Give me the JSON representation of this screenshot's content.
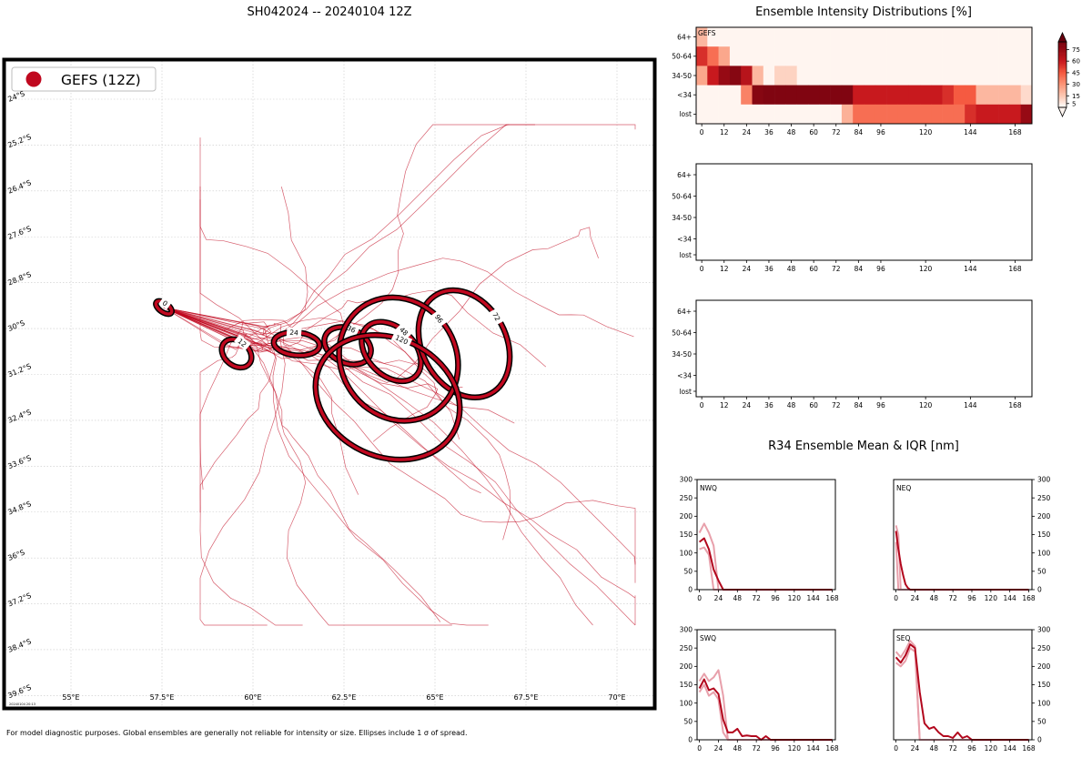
{
  "header": {
    "title": "SH042024 -- 20240104 12Z",
    "footer": "For model diagnostic purposes. Global ensembles are generally not reliable for intensity or size. Ellipses include 1 σ of spread.",
    "stamp": "20240104 20:13"
  },
  "colors": {
    "track": "#c0081f",
    "ellipse_fill": "#c0081f",
    "ellipse_edge": "#000000",
    "r34_mean": "#b2061c",
    "r34_iqr": "#e8a0ab"
  },
  "chart_data": [
    {
      "type": "map",
      "legend": {
        "label": "GEFS (12Z)",
        "placement": "top-left"
      },
      "lon_ticks": [
        "55°E",
        "57.5°E",
        "60°E",
        "62.5°E",
        "65°E",
        "67.5°E",
        "70°E"
      ],
      "lon_values": [
        55,
        57.5,
        60,
        62.5,
        65,
        67.5,
        70
      ],
      "lat_ticks": [
        "24°S",
        "25.2°S",
        "26.4°S",
        "27.6°S",
        "28.8°S",
        "30°S",
        "31.2°S",
        "32.4°S",
        "33.6°S",
        "34.8°S",
        "36°S",
        "37.2°S",
        "38.4°S",
        "39.6°S"
      ],
      "lat_values": [
        -24,
        -25.2,
        -26.4,
        -27.6,
        -28.8,
        -30,
        -31.2,
        -32.4,
        -33.6,
        -34.8,
        -36,
        -37.2,
        -38.4,
        -39.6
      ],
      "xlim": [
        53.2,
        71
      ],
      "ylim": [
        -39.9,
        -23.0
      ],
      "grid": true,
      "ellipses": [
        {
          "label": "0",
          "lon": 57.55,
          "lat": -29.45,
          "rx_deg": 0.25,
          "ry_deg": 0.12,
          "angle": 35
        },
        {
          "label": "12",
          "lon": 59.55,
          "lat": -30.65,
          "rx_deg": 0.45,
          "ry_deg": 0.32,
          "angle": 40
        },
        {
          "label": "24",
          "lon": 61.2,
          "lat": -30.4,
          "rx_deg": 0.63,
          "ry_deg": 0.3,
          "angle": 5
        },
        {
          "label": "36",
          "lon": 62.6,
          "lat": -30.45,
          "rx_deg": 0.67,
          "ry_deg": 0.45,
          "angle": 25
        },
        {
          "label": "48",
          "lon": 63.8,
          "lat": -30.6,
          "rx_deg": 0.95,
          "ry_deg": 0.62,
          "angle": 45
        },
        {
          "label": "72",
          "lon": 65.8,
          "lat": -30.4,
          "rx_deg": 1.55,
          "ry_deg": 1.1,
          "angle": 62
        },
        {
          "label": "96",
          "lon": 64.0,
          "lat": -30.8,
          "rx_deg": 1.75,
          "ry_deg": 1.5,
          "angle": 55
        },
        {
          "label": "120",
          "lon": 63.7,
          "lat": -31.8,
          "rx_deg": 2.05,
          "ry_deg": 1.55,
          "angle": 25
        }
      ],
      "tracks_start": {
        "lon": 57.55,
        "lat": -29.45
      },
      "track_count": 30
    },
    {
      "type": "heatmap",
      "title": "Ensemble Intensity Distributions [%]",
      "panels": [
        {
          "label": "GEFS",
          "has_data": true
        },
        {
          "label": "",
          "has_data": false
        },
        {
          "label": "",
          "has_data": false
        }
      ],
      "rows": [
        "64+",
        "50-64",
        "34-50",
        "<34",
        "lost"
      ],
      "x_ticks": [
        0,
        12,
        24,
        36,
        48,
        60,
        72,
        84,
        96,
        120,
        144,
        168
      ],
      "x_columns": [
        0,
        6,
        12,
        18,
        24,
        30,
        36,
        42,
        48,
        54,
        60,
        66,
        72,
        78,
        84,
        90,
        96,
        102,
        108,
        114,
        120,
        126,
        132,
        138,
        144,
        150,
        156,
        162,
        168,
        174
      ],
      "values": [
        [
          20,
          0,
          0,
          0,
          0,
          0,
          0,
          0,
          0,
          0,
          0,
          0,
          0,
          0,
          0,
          0,
          0,
          0,
          0,
          0,
          0,
          0,
          0,
          0,
          0,
          0,
          0,
          0,
          0,
          0
        ],
        [
          55,
          40,
          25,
          0,
          0,
          0,
          0,
          0,
          0,
          0,
          0,
          0,
          0,
          0,
          0,
          0,
          0,
          0,
          0,
          0,
          0,
          0,
          0,
          0,
          0,
          0,
          0,
          0,
          0,
          0
        ],
        [
          25,
          60,
          75,
          80,
          65,
          20,
          0,
          12,
          12,
          0,
          0,
          0,
          0,
          0,
          0,
          0,
          0,
          0,
          0,
          0,
          0,
          0,
          0,
          0,
          0,
          0,
          0,
          0,
          0,
          0
        ],
        [
          0,
          0,
          0,
          0,
          35,
          80,
          82,
          82,
          82,
          82,
          82,
          82,
          82,
          82,
          60,
          60,
          60,
          60,
          60,
          60,
          60,
          60,
          55,
          45,
          45,
          20,
          20,
          20,
          20,
          10
        ],
        [
          0,
          0,
          0,
          0,
          0,
          0,
          0,
          0,
          0,
          0,
          0,
          0,
          0,
          22,
          40,
          40,
          40,
          40,
          40,
          40,
          40,
          40,
          40,
          40,
          55,
          60,
          60,
          60,
          60,
          75
        ]
      ],
      "colorbar": {
        "ticks": [
          5,
          15,
          30,
          45,
          60,
          75
        ],
        "range": [
          0,
          85
        ],
        "extend": "both"
      }
    },
    {
      "type": "line",
      "title": "R34 Ensemble Mean & IQR [nm]",
      "x_ticks": [
        0,
        24,
        48,
        72,
        96,
        120,
        144,
        168
      ],
      "ylim": [
        0,
        300
      ],
      "y_ticks": [
        0,
        50,
        100,
        150,
        200,
        250,
        300
      ],
      "panels": [
        {
          "label": "NWQ",
          "x": [
            0,
            6,
            12,
            18,
            24,
            30,
            36,
            168
          ],
          "mean": [
            130,
            140,
            110,
            55,
            25,
            0,
            0,
            0
          ],
          "iqr_upper": [
            155,
            180,
            155,
            120,
            0,
            0,
            0,
            0
          ],
          "iqr_lower": [
            110,
            115,
            95,
            0,
            0,
            0,
            0,
            0
          ]
        },
        {
          "label": "NEQ",
          "x": [
            0,
            3,
            6,
            9,
            12,
            15,
            18,
            168
          ],
          "mean": [
            160,
            110,
            70,
            40,
            15,
            5,
            0,
            0
          ],
          "iqr_upper": [
            175,
            150,
            0,
            0,
            0,
            0,
            0,
            0
          ],
          "iqr_lower": [
            130,
            0,
            0,
            0,
            0,
            0,
            0,
            0
          ]
        },
        {
          "label": "SWQ",
          "x": [
            0,
            6,
            12,
            18,
            24,
            30,
            36,
            42,
            48,
            54,
            60,
            66,
            72,
            78,
            84,
            90,
            96,
            168
          ],
          "mean": [
            140,
            165,
            135,
            140,
            125,
            55,
            20,
            20,
            30,
            10,
            12,
            10,
            10,
            0,
            10,
            0,
            0,
            0
          ],
          "iqr_upper": [
            160,
            180,
            160,
            170,
            190,
            120,
            0,
            0,
            0,
            0,
            0,
            0,
            0,
            0,
            0,
            0,
            0,
            0
          ],
          "iqr_lower": [
            130,
            150,
            120,
            130,
            110,
            20,
            0,
            0,
            0,
            0,
            0,
            0,
            0,
            0,
            0,
            0,
            0,
            0
          ]
        },
        {
          "label": "SEQ",
          "x": [
            0,
            6,
            12,
            18,
            24,
            30,
            36,
            42,
            48,
            54,
            60,
            66,
            72,
            78,
            84,
            90,
            96,
            168
          ],
          "mean": [
            225,
            210,
            230,
            260,
            250,
            130,
            45,
            30,
            35,
            20,
            10,
            10,
            5,
            20,
            5,
            10,
            0,
            0
          ],
          "iqr_upper": [
            240,
            225,
            245,
            270,
            255,
            0,
            0,
            0,
            0,
            0,
            0,
            0,
            0,
            0,
            0,
            0,
            0,
            0
          ],
          "iqr_lower": [
            210,
            200,
            215,
            250,
            240,
            0,
            0,
            0,
            0,
            0,
            0,
            0,
            0,
            0,
            0,
            0,
            0,
            0
          ]
        }
      ]
    }
  ]
}
